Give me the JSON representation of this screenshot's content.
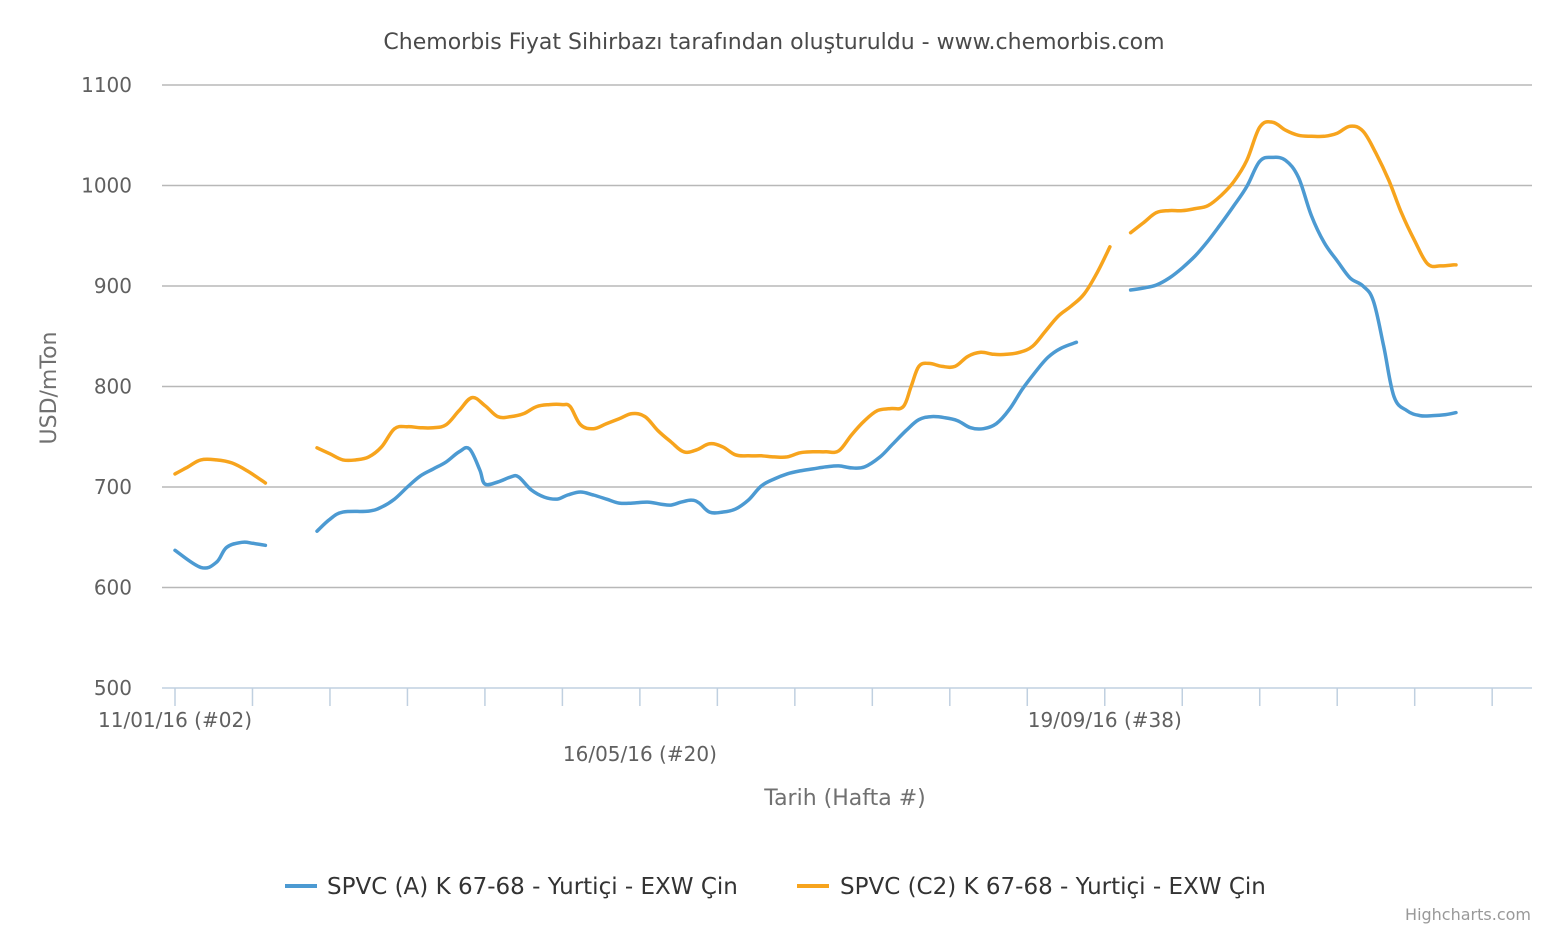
{
  "chart_data": {
    "type": "line",
    "title": "Chemorbis Fiyat Sihirbazı tarafından oluşturuldu - www.chemorbis.com",
    "xlabel": "Tarih (Hafta #)",
    "ylabel": "USD/mTon",
    "ylim": [
      500,
      1100
    ],
    "yticks": [
      "500",
      "600",
      "700",
      "800",
      "900",
      "1000",
      "1100"
    ],
    "grid": true,
    "legend_position": "bottom-center",
    "x_range_weeks": [
      2,
      54
    ],
    "x_labels": [
      {
        "week": 2,
        "label": "11/01/16 (#02)"
      },
      {
        "week": 20,
        "label": "16/05/16 (#20)"
      },
      {
        "week": 38,
        "label": "19/09/16 (#38)"
      }
    ],
    "x_tick_weeks": [
      2,
      5,
      8,
      11,
      14,
      17,
      20,
      23,
      26,
      29,
      32,
      35,
      38,
      41,
      44,
      47,
      50,
      53
    ],
    "series": [
      {
        "name": "SPVC (A) K 67-68 - Yurtiçi - EXW Çin",
        "color": "#4c9ad2",
        "segments": [
          [
            [
              2.0,
              637
            ],
            [
              3.0,
              620
            ],
            [
              3.6,
              625
            ],
            [
              4.0,
              640
            ],
            [
              4.6,
              645
            ],
            [
              5.0,
              644
            ],
            [
              5.5,
              642
            ]
          ],
          [
            [
              7.5,
              656
            ],
            [
              8.0,
              668
            ],
            [
              8.5,
              675
            ],
            [
              9.5,
              676
            ],
            [
              10.0,
              680
            ],
            [
              10.5,
              688
            ],
            [
              11.0,
              700
            ],
            [
              11.5,
              711
            ],
            [
              12.0,
              718
            ],
            [
              12.5,
              725
            ],
            [
              13.0,
              735
            ],
            [
              13.4,
              738
            ],
            [
              13.8,
              717
            ],
            [
              14.0,
              703
            ],
            [
              14.5,
              705
            ],
            [
              15.0,
              710
            ],
            [
              15.3,
              710
            ],
            [
              15.8,
              697
            ],
            [
              16.3,
              690
            ],
            [
              16.8,
              688
            ],
            [
              17.2,
              692
            ],
            [
              17.7,
              695
            ],
            [
              18.2,
              692
            ],
            [
              18.7,
              688
            ],
            [
              19.2,
              684
            ],
            [
              19.7,
              684
            ],
            [
              20.3,
              685
            ],
            [
              20.8,
              683
            ],
            [
              21.2,
              682
            ],
            [
              21.6,
              685
            ],
            [
              22.0,
              687
            ],
            [
              22.3,
              684
            ],
            [
              22.7,
              675
            ],
            [
              23.2,
              675
            ],
            [
              23.7,
              678
            ],
            [
              24.2,
              687
            ],
            [
              24.7,
              701
            ],
            [
              25.2,
              708
            ],
            [
              25.7,
              713
            ],
            [
              26.2,
              716
            ],
            [
              26.7,
              718
            ],
            [
              27.2,
              720
            ],
            [
              27.7,
              721
            ],
            [
              28.2,
              719
            ],
            [
              28.7,
              720
            ],
            [
              29.3,
              730
            ],
            [
              29.8,
              743
            ],
            [
              30.3,
              756
            ],
            [
              30.8,
              767
            ],
            [
              31.3,
              770
            ],
            [
              31.8,
              769
            ],
            [
              32.3,
              766
            ],
            [
              32.8,
              759
            ],
            [
              33.3,
              758
            ],
            [
              33.8,
              763
            ],
            [
              34.3,
              777
            ],
            [
              34.8,
              797
            ],
            [
              35.3,
              814
            ],
            [
              35.8,
              829
            ],
            [
              36.3,
              838
            ],
            [
              36.9,
              844
            ]
          ],
          [
            [
              39.0,
              896
            ],
            [
              39.5,
              898
            ],
            [
              40.0,
              901
            ],
            [
              40.5,
              908
            ],
            [
              41.0,
              918
            ],
            [
              41.5,
              930
            ],
            [
              42.0,
              945
            ],
            [
              42.5,
              962
            ],
            [
              43.0,
              980
            ],
            [
              43.5,
              999
            ],
            [
              44.0,
              1024
            ],
            [
              44.5,
              1028
            ],
            [
              45.0,
              1025
            ],
            [
              45.5,
              1008
            ],
            [
              46.0,
              970
            ],
            [
              46.5,
              943
            ],
            [
              47.0,
              925
            ],
            [
              47.5,
              908
            ],
            [
              48.0,
              900
            ],
            [
              48.4,
              885
            ],
            [
              48.8,
              840
            ],
            [
              49.2,
              790
            ],
            [
              49.7,
              776
            ],
            [
              50.2,
              771
            ],
            [
              50.7,
              771
            ],
            [
              51.2,
              772
            ],
            [
              51.6,
              774
            ]
          ]
        ]
      },
      {
        "name": "SPVC (C2) K 67-68 - Yurtiçi - EXW Çin",
        "color": "#f7a41d",
        "segments": [
          [
            [
              2.0,
              713
            ],
            [
              2.5,
              720
            ],
            [
              3.0,
              727
            ],
            [
              3.6,
              727
            ],
            [
              4.2,
              724
            ],
            [
              4.8,
              716
            ],
            [
              5.5,
              704
            ]
          ],
          [
            [
              7.5,
              739
            ],
            [
              8.0,
              733
            ],
            [
              8.5,
              727
            ],
            [
              9.0,
              727
            ],
            [
              9.5,
              730
            ],
            [
              10.0,
              740
            ],
            [
              10.5,
              758
            ],
            [
              11.0,
              760
            ],
            [
              11.5,
              759
            ],
            [
              12.0,
              759
            ],
            [
              12.5,
              762
            ],
            [
              13.0,
              776
            ],
            [
              13.5,
              789
            ],
            [
              14.0,
              781
            ],
            [
              14.5,
              770
            ],
            [
              15.0,
              770
            ],
            [
              15.5,
              773
            ],
            [
              16.0,
              780
            ],
            [
              16.5,
              782
            ],
            [
              17.0,
              782
            ],
            [
              17.3,
              780
            ],
            [
              17.7,
              762
            ],
            [
              18.2,
              758
            ],
            [
              18.7,
              763
            ],
            [
              19.2,
              768
            ],
            [
              19.7,
              773
            ],
            [
              20.2,
              770
            ],
            [
              20.7,
              756
            ],
            [
              21.2,
              745
            ],
            [
              21.7,
              735
            ],
            [
              22.2,
              737
            ],
            [
              22.7,
              743
            ],
            [
              23.2,
              740
            ],
            [
              23.7,
              732
            ],
            [
              24.2,
              731
            ],
            [
              24.7,
              731
            ],
            [
              25.2,
              730
            ],
            [
              25.7,
              730
            ],
            [
              26.2,
              734
            ],
            [
              26.7,
              735
            ],
            [
              27.2,
              735
            ],
            [
              27.7,
              736
            ],
            [
              28.2,
              752
            ],
            [
              28.7,
              766
            ],
            [
              29.2,
              776
            ],
            [
              29.7,
              778
            ],
            [
              30.2,
              780
            ],
            [
              30.5,
              800
            ],
            [
              30.8,
              820
            ],
            [
              31.2,
              823
            ],
            [
              31.7,
              820
            ],
            [
              32.2,
              820
            ],
            [
              32.7,
              830
            ],
            [
              33.2,
              834
            ],
            [
              33.7,
              832
            ],
            [
              34.2,
              832
            ],
            [
              34.7,
              834
            ],
            [
              35.2,
              840
            ],
            [
              35.7,
              855
            ],
            [
              36.2,
              870
            ],
            [
              36.7,
              880
            ],
            [
              37.2,
              892
            ],
            [
              37.7,
              913
            ],
            [
              38.2,
              939
            ]
          ],
          [
            [
              39.0,
              953
            ],
            [
              39.5,
              963
            ],
            [
              40.0,
              973
            ],
            [
              40.5,
              975
            ],
            [
              41.0,
              975
            ],
            [
              41.5,
              977
            ],
            [
              42.0,
              980
            ],
            [
              42.5,
              990
            ],
            [
              43.0,
              1004
            ],
            [
              43.5,
              1025
            ],
            [
              44.0,
              1058
            ],
            [
              44.5,
              1063
            ],
            [
              45.0,
              1055
            ],
            [
              45.5,
              1050
            ],
            [
              46.0,
              1049
            ],
            [
              46.5,
              1049
            ],
            [
              47.0,
              1052
            ],
            [
              47.5,
              1059
            ],
            [
              48.0,
              1054
            ],
            [
              48.5,
              1032
            ],
            [
              49.0,
              1005
            ],
            [
              49.5,
              972
            ],
            [
              50.0,
              945
            ],
            [
              50.5,
              922
            ],
            [
              51.0,
              920
            ],
            [
              51.5,
              921
            ],
            [
              51.6,
              921
            ]
          ]
        ]
      }
    ]
  },
  "credits": "Highcharts.com"
}
